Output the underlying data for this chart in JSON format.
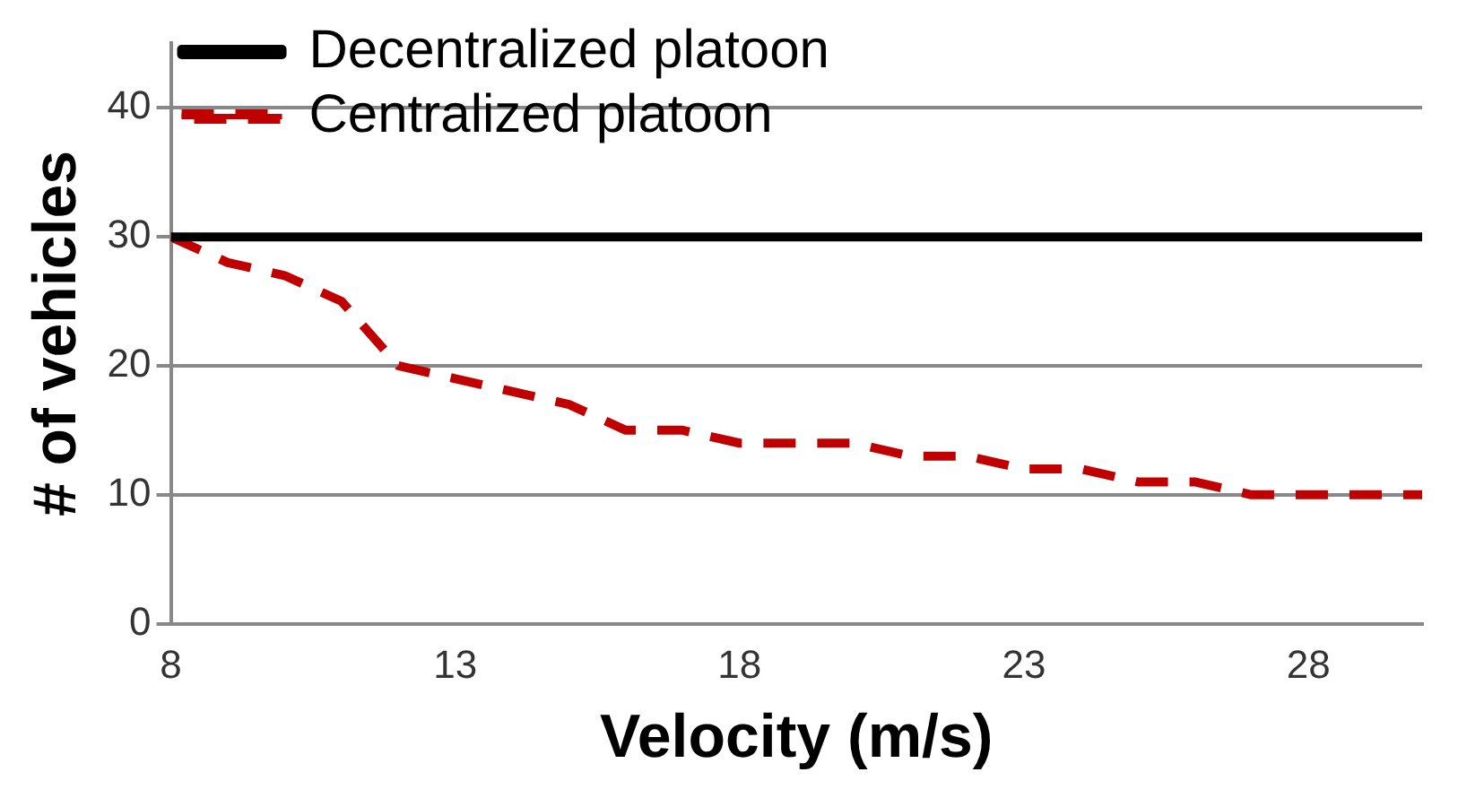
{
  "chart_data": {
    "type": "line",
    "xlabel": "Velocity (m/s)",
    "ylabel": "# of vehicles",
    "x": [
      8,
      9,
      10,
      11,
      12,
      13,
      14,
      15,
      16,
      17,
      18,
      19,
      20,
      21,
      22,
      23,
      24,
      25,
      26,
      27,
      28,
      29,
      30
    ],
    "series": [
      {
        "name": "Decentralized platoon",
        "color": "#000000",
        "line_style": "solid",
        "values": [
          30,
          30,
          30,
          30,
          30,
          30,
          30,
          30,
          30,
          30,
          30,
          30,
          30,
          30,
          30,
          30,
          30,
          30,
          30,
          30,
          30,
          30,
          30
        ]
      },
      {
        "name": "Centralized platoon",
        "color": "#c00000",
        "line_style": "dashed",
        "values": [
          30,
          28,
          27,
          25,
          20,
          19,
          18,
          17,
          15,
          15,
          14,
          14,
          14,
          13,
          13,
          12,
          12,
          11,
          11,
          10,
          10,
          10,
          10
        ]
      }
    ],
    "xlim": [
      8,
      30
    ],
    "xticks": [
      8,
      13,
      18,
      23,
      28
    ],
    "ylim": [
      0,
      45
    ],
    "yticks": [
      0,
      10,
      20,
      30,
      40
    ],
    "grid": "y",
    "legend": "top left",
    "marker": "none"
  }
}
